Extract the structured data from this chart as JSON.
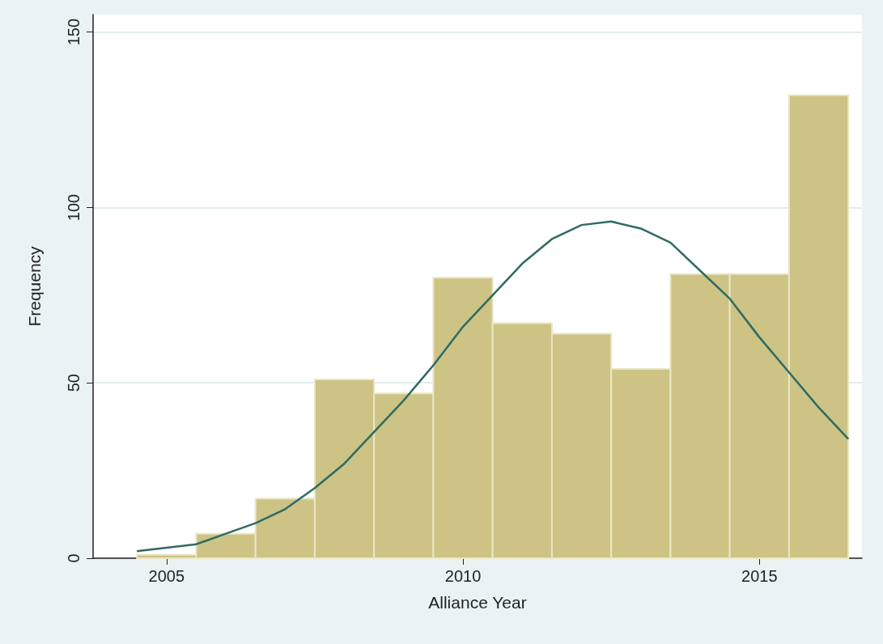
{
  "chart_data": {
    "type": "histogram",
    "xlabel": "Alliance Year",
    "ylabel": "Frequency",
    "xlim": [
      2003.76,
      2016.73
    ],
    "xticks": [
      2005,
      2010,
      2015
    ],
    "ylim": [
      0,
      155
    ],
    "yticks": [
      0,
      50,
      100,
      150
    ],
    "grid": "y",
    "series": [
      {
        "type": "histogram",
        "color": "#ccc385",
        "bins": [
          2004.5,
          2005.5,
          2006.5,
          2007.5,
          2008.5,
          2009.5,
          2010.5,
          2011.5,
          2012.5,
          2013.5,
          2014.5,
          2015.5,
          2016.5
        ],
        "values": [
          1,
          7,
          17,
          51,
          47,
          80,
          67,
          64,
          54,
          81,
          81,
          132
        ]
      },
      {
        "type": "line",
        "color": "#2e6b63",
        "x": [
          2004.5,
          2005,
          2005.5,
          2006,
          2006.5,
          2007,
          2007.5,
          2008,
          2008.5,
          2009,
          2009.5,
          2010,
          2010.5,
          2011,
          2011.5,
          2012,
          2012.5,
          2013,
          2013.5,
          2014,
          2014.5,
          2015,
          2015.5,
          2016,
          2016.5
        ],
        "values": [
          2,
          3,
          4,
          7,
          10,
          14,
          20,
          27,
          36,
          45,
          55,
          66,
          75,
          84,
          91,
          95,
          96,
          94,
          90,
          82,
          74,
          63,
          53,
          43,
          34
        ]
      }
    ]
  }
}
